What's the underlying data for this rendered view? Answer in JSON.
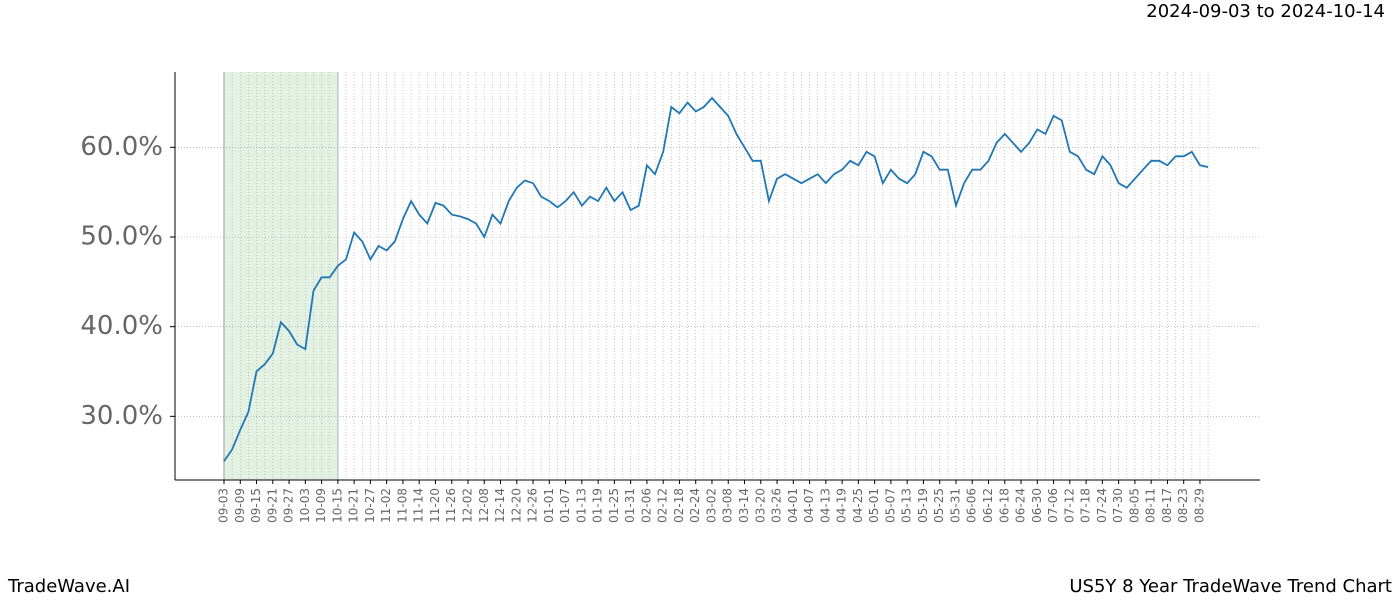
{
  "header": {
    "date_range": "2024-09-03 to 2024-10-14"
  },
  "footer": {
    "left": "TradeWave.AI",
    "right": "US5Y 8 Year TradeWave Trend Chart"
  },
  "chart_data": {
    "type": "line",
    "color": "#1f77b4",
    "categories": [
      "09-03",
      null,
      "09-09",
      null,
      "09-15",
      null,
      "09-21",
      null,
      "09-27",
      null,
      "10-03",
      null,
      "10-09",
      null,
      "10-15",
      null,
      "10-21",
      null,
      "10-27",
      null,
      "11-02",
      null,
      "11-08",
      null,
      "11-14",
      null,
      "11-20",
      null,
      "11-26",
      null,
      "12-02",
      null,
      "12-08",
      null,
      "12-14",
      null,
      "12-20",
      null,
      "12-26",
      null,
      "01-01",
      null,
      "01-07",
      null,
      "01-13",
      null,
      "01-19",
      null,
      "01-25",
      null,
      "01-31",
      null,
      "02-06",
      null,
      "02-12",
      null,
      "02-18",
      null,
      "02-24",
      null,
      "03-02",
      null,
      "03-08",
      null,
      "03-14",
      null,
      "03-20",
      null,
      "03-26",
      null,
      "04-01",
      null,
      "04-07",
      null,
      "04-13",
      null,
      "04-19",
      null,
      "04-25",
      null,
      "05-01",
      null,
      "05-07",
      null,
      "05-13",
      null,
      "05-19",
      null,
      "05-25",
      null,
      "05-31",
      null,
      "06-06",
      null,
      "06-12",
      null,
      "06-18",
      null,
      "06-24",
      null,
      "06-30",
      null,
      "07-06",
      null,
      "07-12",
      null,
      "07-18",
      null,
      "07-24",
      null,
      "07-30",
      null,
      "08-05",
      null,
      "08-11",
      null,
      "08-17",
      null,
      "08-23",
      null,
      "08-29",
      null
    ],
    "values": [
      25.0,
      26.3,
      28.5,
      30.5,
      35.0,
      35.8,
      37.0,
      40.5,
      39.5,
      38.0,
      37.5,
      44.0,
      45.5,
      45.5,
      46.8,
      47.5,
      50.5,
      49.5,
      47.5,
      49.0,
      48.5,
      49.5,
      52.0,
      54.0,
      52.5,
      51.5,
      53.8,
      53.5,
      52.5,
      52.3,
      52.0,
      51.5,
      50.0,
      52.5,
      51.5,
      54.0,
      55.5,
      56.3,
      56.0,
      54.5,
      54.0,
      53.3,
      54.0,
      55.0,
      53.5,
      54.5,
      54.0,
      55.5,
      54.0,
      55.0,
      53.0,
      53.5,
      58.0,
      57.0,
      59.5,
      64.5,
      63.8,
      65.0,
      64.0,
      64.5,
      65.5,
      64.5,
      63.5,
      61.5,
      60.0,
      58.5,
      58.5,
      54.0,
      56.5,
      57.0,
      56.5,
      56.0,
      56.5,
      57.0,
      56.0,
      57.0,
      57.5,
      58.5,
      58.0,
      59.5,
      59.0,
      56.0,
      57.5,
      56.5,
      56.0,
      57.0,
      59.5,
      59.0,
      57.5,
      57.5,
      53.5,
      56.0,
      57.5,
      57.5,
      58.5,
      60.5,
      61.5,
      60.5,
      59.5,
      60.5,
      62.0,
      61.5,
      63.5,
      63.0,
      59.5,
      59.0,
      57.5,
      57.0,
      59.0,
      58.0,
      56.0,
      55.5,
      56.5,
      57.5,
      58.5,
      58.5,
      58.0,
      59.0,
      59.0,
      59.5,
      58.0,
      57.8
    ],
    "ylim": [
      22.9,
      68.4
    ],
    "yticks": [
      {
        "value": 30,
        "label": "30.0%"
      },
      {
        "value": 40,
        "label": "40.0%"
      },
      {
        "value": 50,
        "label": "50.0%"
      },
      {
        "value": 60,
        "label": "60.0%"
      }
    ],
    "grid": true,
    "highlight": {
      "start": "09-03",
      "end": "10-15",
      "color": "#e3f1e3"
    }
  }
}
